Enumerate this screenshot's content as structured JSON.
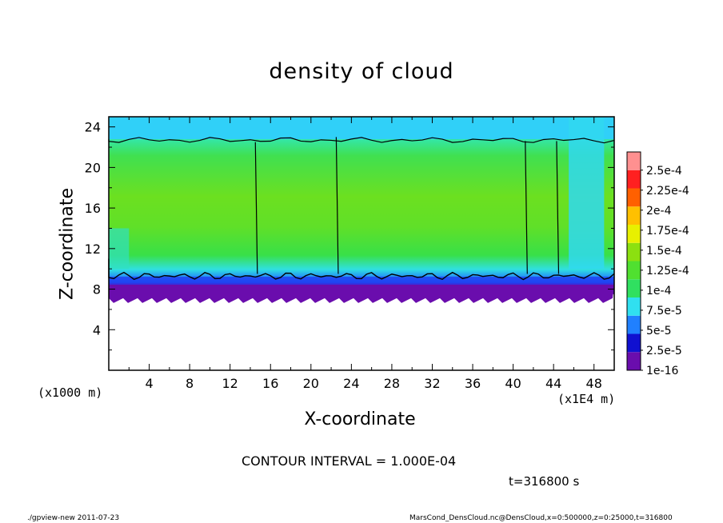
{
  "chart_data": {
    "type": "heatmap",
    "title": "density of cloud",
    "xlabel": "X-coordinate",
    "ylabel": "Z-coordinate",
    "x_unit_label": "(x1000 m)",
    "x_scale_label": "(x1E4 m)",
    "xlim": [
      0,
      50
    ],
    "ylim": [
      0,
      25
    ],
    "x_ticks": [
      "4",
      "8",
      "12",
      "16",
      "20",
      "24",
      "28",
      "32",
      "36",
      "40",
      "44",
      "48"
    ],
    "y_ticks": [
      "4",
      "8",
      "12",
      "16",
      "20",
      "24"
    ],
    "colorbar_labels": [
      "1e-16",
      "2.5e-5",
      "5e-5",
      "7.5e-5",
      "1e-4",
      "1.25e-4",
      "1.5e-4",
      "1.75e-4",
      "2e-4",
      "2.25e-4",
      "2.5e-4"
    ],
    "colorbar_colors": [
      "#6a0dad",
      "#1010d0",
      "#2080ff",
      "#30e0f0",
      "#30e060",
      "#50e030",
      "#8ce010",
      "#e8f000",
      "#ffc000",
      "#ff6000",
      "#ff2020",
      "#ff9090"
    ],
    "cloud_base_km": 7.5,
    "cloud_core_value": "1.5e-4",
    "contour_interval": "CONTOUR INTERVAL = 1.000E-04",
    "time": "t=316800 s"
  },
  "footer": {
    "left": "./gpview-new   2011-07-23",
    "right": "MarsCond_DensCloud.nc@DensCloud,x=0:500000,z=0:25000,t=316800"
  }
}
